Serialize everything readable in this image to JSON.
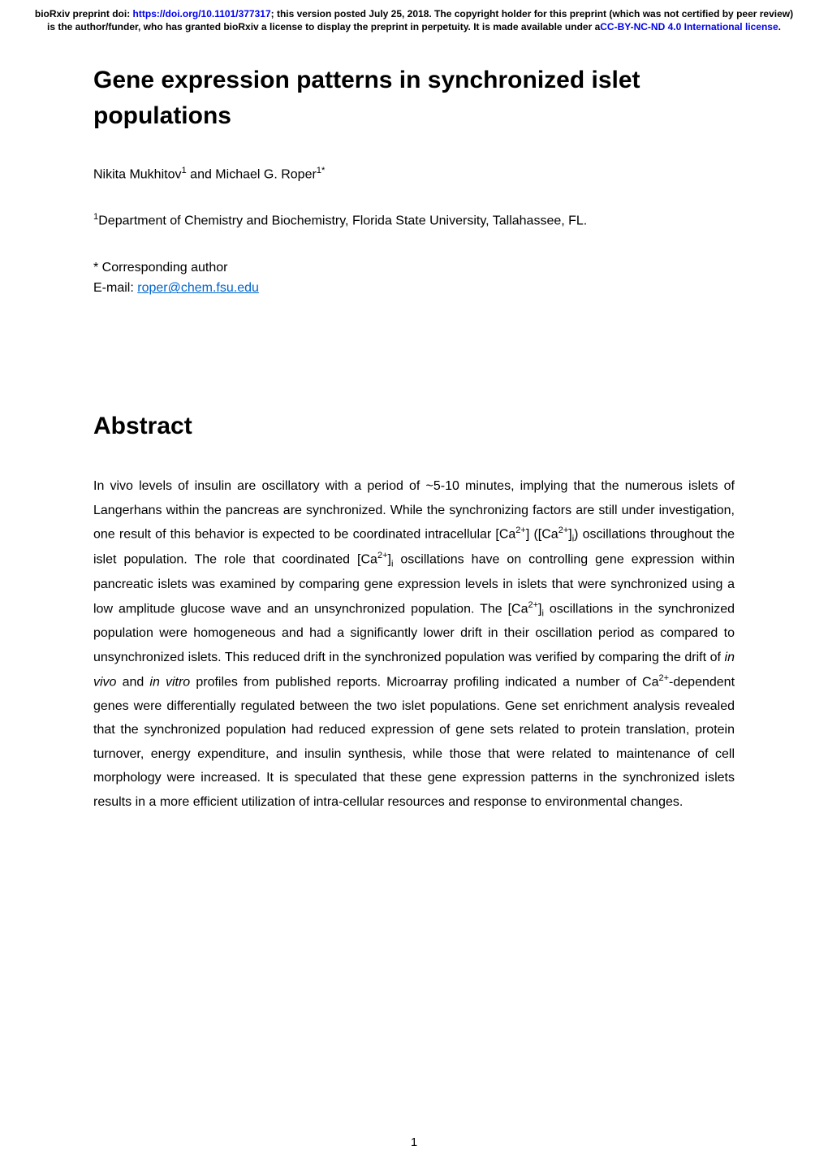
{
  "preprint_banner": {
    "line1_prefix": "bioRxiv preprint doi: ",
    "doi_url_text": "https://doi.org/10.1101/377317",
    "line1_suffix": "; this version posted July 25, 2018. The copyright holder for this preprint (which was not certified by peer review) is the author/funder, who has granted bioRxiv a license to display the preprint in perpetuity. It is made available under a",
    "license_text": "CC-BY-NC-ND 4.0 International license",
    "line1_end": "."
  },
  "title": "Gene expression patterns in synchronized islet populations",
  "authors_html": "Nikita Mukhitov<sup>1</sup> and Michael G. Roper<sup>1*</sup>",
  "affiliation_html": "<sup>1</sup>Department of Chemistry and Biochemistry, Florida State University, Tallahassee, FL.",
  "corresponding": {
    "label": "* Corresponding author",
    "email_label": "E-mail: ",
    "email": "roper@chem.fsu.edu"
  },
  "abstract": {
    "heading": "Abstract",
    "body_html": "In vivo levels of insulin are oscillatory with a period of ~5-10 minutes, implying that the numerous islets of Langerhans within the pancreas are synchronized. While the synchronizing factors are still under investigation, one result of this behavior is expected to be coordinated intracellular [Ca<sup>2+</sup>] ([Ca<sup>2+</sup>]<sub>i</sub>) oscillations throughout the islet population. The role that coordinated [Ca<sup>2+</sup>]<sub>i</sub> oscillations have on controlling gene expression within pancreatic islets was examined by comparing gene expression levels in islets that were synchronized using a low amplitude glucose wave and an unsynchronized population. The [Ca<sup>2+</sup>]<sub>i</sub> oscillations in the synchronized population were homogeneous and had a significantly lower drift in their oscillation period as compared to unsynchronized islets. This reduced drift in the synchronized population was verified by comparing the drift of <em>in vivo</em> and <em>in vitro</em> profiles from published reports. Microarray profiling indicated a number of Ca<sup>2+</sup>-dependent genes were differentially regulated between the two islet populations. Gene set enrichment analysis revealed that the synchronized population had reduced expression of gene sets related to protein translation, protein turnover, energy expenditure, and insulin synthesis, while those that were related to maintenance of cell morphology were increased. It is speculated that these gene expression patterns in the synchronized islets results in a more efficient utilization of intra-cellular resources and response to environmental changes."
  },
  "page_number": "1",
  "colors": {
    "link": "#0000ee",
    "email_link": "#0066cc",
    "text": "#000000",
    "background": "#ffffff"
  }
}
